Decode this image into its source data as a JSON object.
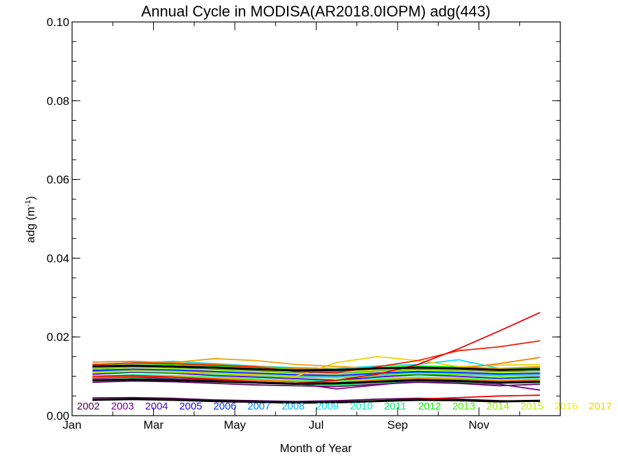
{
  "chart_data": {
    "type": "line",
    "title": "Annual Cycle in MODISA(AR2018.0IOPM) adg(443)",
    "xlabel": "Month of Year",
    "ylabel": "adg (m",
    "ylabel_sup": "-1",
    "ylabel_close": ")",
    "xlim": [
      1,
      13
    ],
    "ylim": [
      0,
      0.1
    ],
    "x_ticks": [
      {
        "value": 1,
        "label": "Jan"
      },
      {
        "value": 3,
        "label": "Mar"
      },
      {
        "value": 5,
        "label": "May"
      },
      {
        "value": 7,
        "label": "Jul"
      },
      {
        "value": 9,
        "label": "Sep"
      },
      {
        "value": 11,
        "label": "Nov"
      }
    ],
    "y_ticks": [
      {
        "value": 0,
        "label": "0.00"
      },
      {
        "value": 0.02,
        "label": "0.02"
      },
      {
        "value": 0.04,
        "label": "0.04"
      },
      {
        "value": 0.06,
        "label": "0.06"
      },
      {
        "value": 0.08,
        "label": "0.08"
      },
      {
        "value": 0.1,
        "label": "0.10"
      }
    ],
    "x": [
      1.5,
      2.5,
      3.5,
      4.5,
      5.5,
      6.5,
      7.5,
      8.5,
      9.5,
      10.5,
      11.5,
      12.5
    ],
    "legend_years": [
      {
        "label": "2002",
        "color": "#5a005a"
      },
      {
        "label": "2003",
        "color": "#7a0090"
      },
      {
        "label": "2004",
        "color": "#4a00d0"
      },
      {
        "label": "2005",
        "color": "#1a00f0"
      },
      {
        "label": "2006",
        "color": "#0030ff"
      },
      {
        "label": "2007",
        "color": "#0080ff"
      },
      {
        "label": "2008",
        "color": "#00b4ff"
      },
      {
        "label": "2009",
        "color": "#00e0f0"
      },
      {
        "label": "2010",
        "color": "#00f0b0"
      },
      {
        "label": "2011",
        "color": "#00f060"
      },
      {
        "label": "2012",
        "color": "#00f000"
      },
      {
        "label": "2013",
        "color": "#40f000"
      },
      {
        "label": "2014",
        "color": "#90f000"
      },
      {
        "label": "2015",
        "color": "#c0f000"
      },
      {
        "label": "2016",
        "color": "#f0f000"
      },
      {
        "label": "2017",
        "color": "#f0d000"
      }
    ],
    "series": [
      {
        "color": "#5a005a",
        "values": [
          0.0085,
          0.0088,
          0.0086,
          0.0082,
          0.0078,
          0.0076,
          0.0074,
          0.008,
          0.0085,
          0.0082,
          0.0076,
          0.008
        ]
      },
      {
        "color": "#5a005a",
        "values": [
          0.0045,
          0.0046,
          0.0044,
          0.004,
          0.0038,
          0.0036,
          0.0038,
          0.0042,
          0.0044,
          0.0042,
          0.0038,
          0.0036
        ]
      },
      {
        "color": "#7a0090",
        "values": [
          0.0095,
          0.0098,
          0.0094,
          0.009,
          0.0086,
          0.0082,
          0.0068,
          0.0078,
          0.0088,
          0.0085,
          0.008,
          0.0065
        ]
      },
      {
        "color": "#4a00d0",
        "values": [
          0.0105,
          0.011,
          0.0108,
          0.0102,
          0.0098,
          0.0094,
          0.009,
          0.0098,
          0.0104,
          0.01,
          0.0095,
          0.0098
        ]
      },
      {
        "color": "#1a00f0",
        "values": [
          0.0115,
          0.0118,
          0.0116,
          0.0112,
          0.0108,
          0.0104,
          0.0102,
          0.0108,
          0.0112,
          0.011,
          0.0106,
          0.0108
        ]
      },
      {
        "color": "#0030ff",
        "values": [
          0.012,
          0.0124,
          0.0122,
          0.0118,
          0.0114,
          0.011,
          0.0108,
          0.0114,
          0.0118,
          0.0116,
          0.0112,
          0.0114
        ]
      },
      {
        "color": "#0080ff",
        "values": [
          0.0112,
          0.0116,
          0.0114,
          0.011,
          0.0106,
          0.0102,
          0.01,
          0.0106,
          0.011,
          0.0108,
          0.0104,
          0.0106
        ]
      },
      {
        "color": "#00b4ff",
        "values": [
          0.0125,
          0.0128,
          0.0126,
          0.0122,
          0.0118,
          0.0114,
          0.0112,
          0.0118,
          0.0122,
          0.012,
          0.0116,
          0.0118
        ]
      },
      {
        "color": "#00e0f0",
        "values": [
          0.013,
          0.0134,
          0.0138,
          0.0132,
          0.0126,
          0.0122,
          0.012,
          0.0126,
          0.013,
          0.0142,
          0.012,
          0.0112
        ]
      },
      {
        "color": "#00f0b0",
        "values": [
          0.01,
          0.0104,
          0.0102,
          0.0098,
          0.0094,
          0.009,
          0.0088,
          0.0094,
          0.0098,
          0.0096,
          0.0092,
          0.0094
        ]
      },
      {
        "color": "#00f060",
        "values": [
          0.009,
          0.0094,
          0.0092,
          0.0088,
          0.0084,
          0.008,
          0.0078,
          0.0084,
          0.0088,
          0.0086,
          0.0082,
          0.0084
        ]
      },
      {
        "color": "#00f000",
        "values": [
          0.0128,
          0.0132,
          0.013,
          0.0126,
          0.0122,
          0.0118,
          0.0116,
          0.0122,
          0.0126,
          0.0124,
          0.012,
          0.0122
        ]
      },
      {
        "color": "#40f000",
        "values": [
          0.0108,
          0.0112,
          0.011,
          0.0106,
          0.0102,
          0.0098,
          0.0096,
          0.0102,
          0.0106,
          0.0104,
          0.01,
          0.0102
        ]
      },
      {
        "color": "#90f000",
        "values": [
          0.0118,
          0.0122,
          0.012,
          0.0116,
          0.0112,
          0.0108,
          0.0106,
          0.0112,
          0.0116,
          0.0114,
          0.011,
          0.0112
        ]
      },
      {
        "color": "#c0f000",
        "values": [
          0.0098,
          0.0102,
          0.01,
          0.0096,
          0.0092,
          0.0088,
          0.0086,
          0.0092,
          0.0096,
          0.0094,
          0.009,
          0.0092
        ]
      },
      {
        "color": "#f0f000",
        "values": [
          0.0122,
          0.0126,
          0.0124,
          0.012,
          0.0116,
          0.0112,
          0.011,
          0.0116,
          0.012,
          0.0118,
          0.0114,
          0.0116
        ]
      },
      {
        "color": "#f0d000",
        "values": [
          0.011,
          0.0114,
          0.0112,
          0.0108,
          0.0104,
          0.01,
          0.0135,
          0.015,
          0.014,
          0.0125,
          0.0128,
          0.013
        ]
      },
      {
        "color": "#f0a000",
        "values": [
          0.013,
          0.0132,
          0.0135,
          0.0145,
          0.014,
          0.013,
          0.0125,
          0.012,
          0.012,
          0.0122,
          0.012,
          0.0125
        ]
      },
      {
        "color": "#f08000",
        "values": [
          0.0136,
          0.0138,
          0.0134,
          0.013,
          0.0125,
          0.012,
          0.0118,
          0.012,
          0.0122,
          0.012,
          0.0132,
          0.0148
        ]
      },
      {
        "color": "#f06000",
        "values": [
          0.0096,
          0.01,
          0.0098,
          0.0094,
          0.009,
          0.0086,
          0.0084,
          0.009,
          0.0094,
          0.0092,
          0.0088,
          0.009
        ]
      },
      {
        "color": "#f02000",
        "values": [
          0.013,
          0.0134,
          0.0132,
          0.0128,
          0.0124,
          0.0112,
          0.011,
          0.0124,
          0.014,
          0.0165,
          0.0175,
          0.019
        ]
      },
      {
        "color": "#f00000",
        "values": [
          0.01,
          0.0102,
          0.0098,
          0.0092,
          0.0086,
          0.0082,
          0.009,
          0.0105,
          0.013,
          0.017,
          0.0215,
          0.0262
        ]
      },
      {
        "color": "#f00000",
        "values": [
          0.004,
          0.0042,
          0.004,
          0.0036,
          0.0034,
          0.0032,
          0.0034,
          0.0038,
          0.0042,
          0.0046,
          0.005,
          0.0052
        ]
      },
      {
        "color": "#000000",
        "width": 3,
        "values": [
          0.0125,
          0.0127,
          0.0125,
          0.0122,
          0.0118,
          0.0115,
          0.0116,
          0.012,
          0.0122,
          0.012,
          0.0116,
          0.0118
        ]
      },
      {
        "color": "#000000",
        "width": 3,
        "values": [
          0.009,
          0.0092,
          0.009,
          0.0087,
          0.0084,
          0.0081,
          0.0082,
          0.0086,
          0.009,
          0.0088,
          0.0084,
          0.0086
        ]
      },
      {
        "color": "#000000",
        "width": 3,
        "values": [
          0.004,
          0.0042,
          0.004,
          0.0037,
          0.0035,
          0.0033,
          0.0034,
          0.0037,
          0.004,
          0.0039,
          0.0036,
          0.0038
        ]
      }
    ]
  }
}
